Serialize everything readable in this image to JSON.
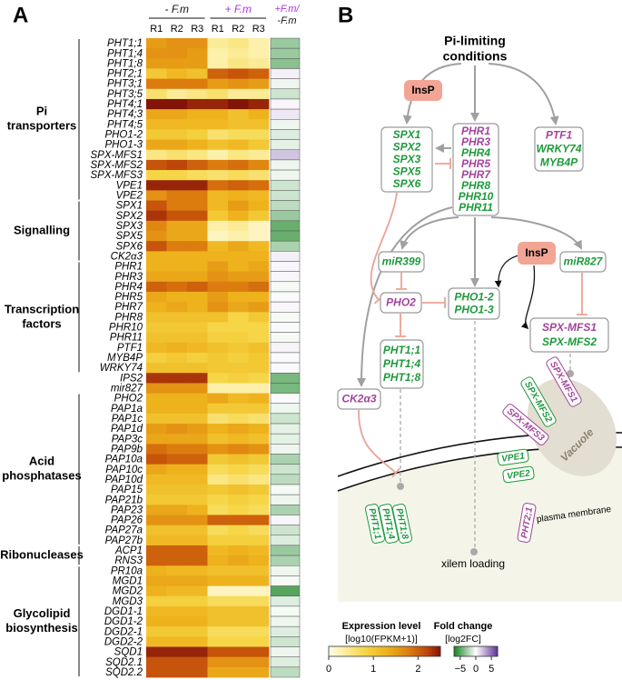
{
  "panel_labels": [
    "A",
    "B"
  ],
  "heatmap": {
    "conditions": [
      {
        "label": "- F.m",
        "color": "#111111"
      },
      {
        "label": "+ F.m",
        "color": "#b030e0"
      }
    ],
    "replicates": [
      "R1",
      "R2",
      "R3",
      "R1",
      "R2",
      "R3"
    ],
    "fold_change_header": [
      {
        "text": "+F.m/",
        "color": "#b030e0"
      },
      {
        "text": "-F.m",
        "color": "#111111"
      }
    ],
    "groups": [
      {
        "lines": [
          "Pi",
          "transporters"
        ],
        "genes": [
          {
            "name": "PHT1;1",
            "values": [
              1.5,
              1.6,
              1.6,
              0.4,
              0.5,
              0.3
            ],
            "fc": -3
          },
          {
            "name": "PHT1;4",
            "values": [
              1.6,
              1.6,
              1.5,
              0.3,
              0.4,
              0.3
            ],
            "fc": -3
          },
          {
            "name": "PHT1;8",
            "values": [
              1.5,
              1.5,
              1.5,
              0.3,
              0.5,
              0.4
            ],
            "fc": -3.5
          },
          {
            "name": "PHT2;1",
            "values": [
              1.0,
              1.2,
              1.1,
              2.0,
              2.1,
              2.0
            ],
            "fc": 0.5
          },
          {
            "name": "PHT3;1",
            "values": [
              1.8,
              1.8,
              1.8,
              1.5,
              1.6,
              1.5
            ],
            "fc": -0.5
          },
          {
            "name": "PHT3;5",
            "values": [
              0.6,
              0.4,
              0.5,
              0.6,
              0.4,
              0.4
            ],
            "fc": -1.5
          },
          {
            "name": "PHT4;1",
            "values": [
              2.5,
              2.5,
              2.4,
              2.4,
              2.5,
              2.4
            ],
            "fc": 0.3
          },
          {
            "name": "PHT4;3",
            "values": [
              1.4,
              1.4,
              1.3,
              1.3,
              1.1,
              1.3
            ],
            "fc": 0.8
          },
          {
            "name": "PHT4;5",
            "values": [
              1.2,
              1.2,
              1.2,
              1.2,
              1.1,
              1.1
            ],
            "fc": -0.5
          },
          {
            "name": "PHO1-2",
            "values": [
              1.0,
              1.0,
              0.9,
              0.6,
              0.7,
              0.7
            ],
            "fc": -1
          },
          {
            "name": "PHO1-3",
            "values": [
              1.4,
              1.4,
              1.3,
              1.1,
              1.2,
              1.0
            ],
            "fc": -0.8
          },
          {
            "name": "SPX-MFS1",
            "values": [
              0.5,
              0.6,
              0.5,
              0.3,
              0.5,
              0.4
            ],
            "fc": 2
          },
          {
            "name": "SPX-MFS2",
            "values": [
              2.1,
              2.2,
              2.0,
              1.8,
              1.9,
              1.7
            ],
            "fc": -0.5
          },
          {
            "name": "SPX-MFS3",
            "values": [
              0.8,
              0.8,
              0.7,
              0.6,
              0.7,
              0.6
            ],
            "fc": -0.5
          },
          {
            "name": "VPE1",
            "values": [
              2.4,
              2.4,
              2.4,
              1.9,
              2.0,
              1.9
            ],
            "fc": -1.5
          },
          {
            "name": "VPE2",
            "values": [
              1.6,
              1.8,
              1.8,
              1.2,
              1.3,
              1.2
            ],
            "fc": -1.5
          }
        ]
      },
      {
        "lines": [
          "Signalling"
        ],
        "genes": [
          {
            "name": "SPX1",
            "values": [
              2.1,
              1.8,
              1.8,
              1.2,
              1.5,
              1.3
            ],
            "fc": -2
          },
          {
            "name": "SPX2",
            "values": [
              2.3,
              2.1,
              2.1,
              1.0,
              1.3,
              1.0
            ],
            "fc": -3
          },
          {
            "name": "SPX3",
            "values": [
              1.7,
              1.4,
              1.4,
              0.3,
              0.4,
              0.2
            ],
            "fc": -4.5
          },
          {
            "name": "SPX5",
            "values": [
              1.6,
              1.4,
              1.4,
              0.2,
              0.3,
              0.2
            ],
            "fc": -4.5
          },
          {
            "name": "SPX6",
            "values": [
              2.1,
              1.8,
              1.8,
              1.2,
              1.4,
              1.2
            ],
            "fc": -2.5
          },
          {
            "name": "CK2α3",
            "values": [
              1.3,
              1.3,
              1.3,
              1.3,
              1.3,
              1.3
            ],
            "fc": 0.5
          }
        ]
      },
      {
        "lines": [
          "Transcription",
          "factors"
        ],
        "genes": [
          {
            "name": "PHR1",
            "values": [
              1.3,
              1.3,
              1.3,
              1.5,
              1.3,
              1.4
            ],
            "fc": 0.3
          },
          {
            "name": "PHR3",
            "values": [
              1.4,
              1.4,
              1.4,
              1.6,
              1.5,
              1.5
            ],
            "fc": 0.3
          },
          {
            "name": "PHR4",
            "values": [
              2.0,
              1.9,
              2.0,
              1.8,
              1.8,
              1.9
            ],
            "fc": -0.3
          },
          {
            "name": "PHR5",
            "values": [
              1.4,
              1.3,
              1.3,
              1.5,
              1.3,
              1.3
            ],
            "fc": 0.2
          },
          {
            "name": "PHR7",
            "values": [
              1.3,
              1.4,
              1.3,
              1.6,
              1.4,
              1.5
            ],
            "fc": 0.3
          },
          {
            "name": "PHR8",
            "values": [
              1.1,
              1.1,
              1.1,
              1.1,
              0.8,
              1.0
            ],
            "fc": -0.3
          },
          {
            "name": "PHR10",
            "values": [
              1.0,
              1.0,
              1.0,
              0.8,
              0.8,
              0.8
            ],
            "fc": -0.2
          },
          {
            "name": "PHR11",
            "values": [
              1.1,
              1.1,
              1.1,
              0.9,
              0.9,
              0.8
            ],
            "fc": -0.3
          },
          {
            "name": "PTF1",
            "values": [
              1.2,
              1.3,
              1.2,
              1.1,
              1.0,
              1.1
            ],
            "fc": 0.4
          },
          {
            "name": "MYB4P",
            "values": [
              0.9,
              1.0,
              0.9,
              1.0,
              0.9,
              1.0
            ],
            "fc": 0.2
          },
          {
            "name": "WRKY74",
            "values": [
              1.1,
              1.1,
              1.1,
              1.0,
              1.0,
              1.0
            ],
            "fc": 0.2
          }
        ]
      },
      {
        "genes": [
          {
            "name": "IPS2",
            "values": [
              2.3,
              2.3,
              2.3,
              0.8,
              0.9,
              0.8
            ],
            "fc": -4
          },
          {
            "name": "mir827",
            "values": [
              1.6,
              1.6,
              1.6,
              0.3,
              0.3,
              0.3
            ],
            "fc": -4
          }
        ]
      },
      {
        "lines": [
          "Acid",
          "phosphatases"
        ],
        "genes": [
          {
            "name": "PHO2",
            "values": [
              1.3,
              1.3,
              1.3,
              1.4,
              1.2,
              1.3
            ],
            "fc": 0.2
          },
          {
            "name": "PAP1a",
            "values": [
              1.3,
              1.3,
              1.3,
              1.0,
              1.0,
              1.0
            ],
            "fc": -0.5
          },
          {
            "name": "PAP1c",
            "values": [
              1.1,
              1.1,
              1.1,
              0.6,
              0.7,
              0.6
            ],
            "fc": -1.5
          },
          {
            "name": "PAP1d",
            "values": [
              1.5,
              1.6,
              1.5,
              1.3,
              1.4,
              1.3
            ],
            "fc": -0.8
          },
          {
            "name": "PAP3c",
            "values": [
              1.4,
              1.4,
              1.4,
              1.1,
              1.2,
              1.1
            ],
            "fc": -0.8
          },
          {
            "name": "PAP9b",
            "values": [
              1.9,
              1.8,
              1.8,
              1.6,
              1.7,
              1.6
            ],
            "fc": -0.5
          },
          {
            "name": "PAP10a",
            "values": [
              2.1,
              2.0,
              2.0,
              1.0,
              1.1,
              1.0
            ],
            "fc": -2.5
          },
          {
            "name": "PAP10c",
            "values": [
              1.4,
              1.3,
              1.3,
              0.7,
              0.8,
              0.7
            ],
            "fc": -1.5
          },
          {
            "name": "PAP10d",
            "values": [
              1.2,
              1.2,
              1.2,
              0.5,
              0.6,
              0.5
            ],
            "fc": -2
          },
          {
            "name": "PAP15",
            "values": [
              1.1,
              1.1,
              1.1,
              1.0,
              1.1,
              1.0
            ],
            "fc": -0.3
          },
          {
            "name": "PAP21b",
            "values": [
              1.0,
              1.0,
              1.0,
              0.8,
              0.9,
              0.8
            ],
            "fc": -0.5
          },
          {
            "name": "PAP23",
            "values": [
              1.4,
              1.4,
              1.3,
              0.7,
              0.8,
              0.7
            ],
            "fc": -2.5
          },
          {
            "name": "PAP26",
            "values": [
              1.6,
              1.6,
              1.6,
              2.0,
              2.0,
              2.0
            ],
            "fc": 0.3
          },
          {
            "name": "PAP27a",
            "values": [
              1.1,
              1.1,
              1.1,
              0.7,
              0.8,
              0.7
            ],
            "fc": -1.5
          },
          {
            "name": "PAP27b",
            "values": [
              1.2,
              1.2,
              1.2,
              0.9,
              0.9,
              0.9
            ],
            "fc": -1
          }
        ]
      },
      {
        "lines": [
          "Ribonucleases"
        ],
        "genes": [
          {
            "name": "ACP1",
            "values": [
              2.0,
              2.0,
              2.0,
              1.2,
              1.3,
              1.2
            ],
            "fc": -3
          },
          {
            "name": "RNS3",
            "values": [
              2.0,
              2.0,
              2.0,
              1.3,
              1.4,
              1.3
            ],
            "fc": -2.5
          }
        ]
      },
      {
        "lines": [
          "Glycolipid",
          "biosynthesis"
        ],
        "genes": [
          {
            "name": "PR10a",
            "values": [
              1.3,
              1.2,
              1.2,
              1.1,
              1.1,
              1.1
            ],
            "fc": -0.5
          },
          {
            "name": "MGD1",
            "values": [
              1.4,
              1.4,
              1.4,
              1.3,
              1.3,
              1.3
            ],
            "fc": -0.3
          },
          {
            "name": "MGD2",
            "values": [
              1.3,
              1.2,
              1.2,
              0.2,
              0.2,
              0.2
            ],
            "fc": -5
          },
          {
            "name": "MGD3",
            "values": [
              0.9,
              0.9,
              0.9,
              0.7,
              0.7,
              0.7
            ],
            "fc": -1
          },
          {
            "name": "DGD1-1",
            "values": [
              1.2,
              1.2,
              1.2,
              1.1,
              1.1,
              1.1
            ],
            "fc": -0.3
          },
          {
            "name": "DGD1-2",
            "values": [
              1.3,
              1.3,
              1.3,
              1.1,
              1.1,
              1.1
            ],
            "fc": -0.5
          },
          {
            "name": "DGD2-1",
            "values": [
              1.0,
              1.0,
              1.0,
              0.7,
              0.7,
              0.7
            ],
            "fc": -1
          },
          {
            "name": "DGD2-2",
            "values": [
              1.2,
              1.2,
              1.2,
              0.8,
              0.8,
              0.8
            ],
            "fc": -1.5
          },
          {
            "name": "SQD1",
            "values": [
              2.4,
              2.4,
              2.4,
              2.1,
              2.1,
              2.1
            ],
            "fc": -0.5
          },
          {
            "name": "SQD2.1",
            "values": [
              2.1,
              2.1,
              2.1,
              1.6,
              1.6,
              1.6
            ],
            "fc": -1
          },
          {
            "name": "SQD2.2",
            "values": [
              2.1,
              2.1,
              2.1,
              1.4,
              1.4,
              1.4
            ],
            "fc": -2
          }
        ]
      }
    ],
    "expression_scale": {
      "title": "Expression level",
      "subtitle": "[log10(FPKM+1)]",
      "lim": [
        0,
        2.5
      ],
      "ticks": [
        0,
        1,
        2
      ]
    },
    "fold_change_scale": {
      "title": "Fold change",
      "subtitle": "[log2FC]",
      "lim": [
        -7,
        7
      ],
      "ticks": [
        {
          "value": -5,
          "label": "−5"
        },
        0,
        5
      ]
    }
  },
  "diagram": {
    "title_lines": [
      "Pi-limiting",
      "conditions"
    ],
    "insp": [
      "InsP",
      "InsP"
    ],
    "nodes": {
      "spx_box": [
        {
          "text": "SPX1",
          "color": "#1e9a3c"
        },
        {
          "text": "SPX2",
          "color": "#1e9a3c"
        },
        {
          "text": "SPX3",
          "color": "#1e9a3c"
        },
        {
          "text": "SPX5",
          "color": "#1e9a3c"
        },
        {
          "text": "SPX6",
          "color": "#1e9a3c"
        }
      ],
      "phr_box": [
        {
          "text": "PHR1",
          "color": "#a3449c"
        },
        {
          "text": "PHR3",
          "color": "#a3449c"
        },
        {
          "text": "PHR4",
          "color": "#1e9a3c"
        },
        {
          "text": "PHR5",
          "color": "#a3449c"
        },
        {
          "text": "PHR7",
          "color": "#a3449c"
        },
        {
          "text": "PHR8",
          "color": "#1e9a3c"
        },
        {
          "text": "PHR10",
          "color": "#1e9a3c"
        },
        {
          "text": "PHR11",
          "color": "#1e9a3c"
        }
      ],
      "ptf_box": [
        {
          "text": "PTF1",
          "color": "#a3449c"
        },
        {
          "text": "WRKY74",
          "color": "#1e9a3c"
        },
        {
          "text": "MYB4P",
          "color": "#1e9a3c"
        }
      ],
      "mir399": [
        {
          "text": "miR399",
          "color": "#1e9a3c"
        }
      ],
      "pho2": [
        {
          "text": "PHO2",
          "color": "#a3449c"
        }
      ],
      "pho1_box": [
        {
          "text": "PHO1-2",
          "color": "#1e9a3c"
        },
        {
          "text": "PHO1-3",
          "color": "#1e9a3c"
        }
      ],
      "mir827": [
        {
          "text": "miR827",
          "color": "#1e9a3c"
        }
      ],
      "spx_mfs_box": [
        {
          "text": "SPX-MFS1",
          "color": "#a3449c"
        },
        {
          "text": "SPX-MFS2",
          "color": "#1e9a3c"
        }
      ],
      "pht1_box": [
        {
          "text": "PHT1;1",
          "color": "#1e9a3c"
        },
        {
          "text": "PHT1;4",
          "color": "#1e9a3c"
        },
        {
          "text": "PHT1;8",
          "color": "#1e9a3c"
        }
      ],
      "ck2": [
        {
          "text": "CK2α3",
          "color": "#a3449c"
        }
      ],
      "vacuole_tags": [
        {
          "text": "SPX-MFS1",
          "color": "#a3449c"
        },
        {
          "text": "SPX-MFS2",
          "color": "#1e9a3c"
        },
        {
          "text": "SPX-MFS3",
          "color": "#a3449c"
        }
      ],
      "vpe_tags": [
        {
          "text": "VPE1",
          "color": "#1e9a3c"
        },
        {
          "text": "VPE2",
          "color": "#1e9a3c"
        }
      ],
      "membrane_tags": [
        {
          "text": "PHT1;1",
          "color": "#1e9a3c"
        },
        {
          "text": "PHT1;4",
          "color": "#1e9a3c"
        },
        {
          "text": "PHT1;8",
          "color": "#1e9a3c"
        }
      ],
      "pht2_tag": [
        {
          "text": "PHT2;1",
          "color": "#a3449c"
        }
      ]
    },
    "vacuole_label": "Vacuole",
    "membrane_label": "plasma membrane",
    "xylem_label": "xilem loading"
  }
}
